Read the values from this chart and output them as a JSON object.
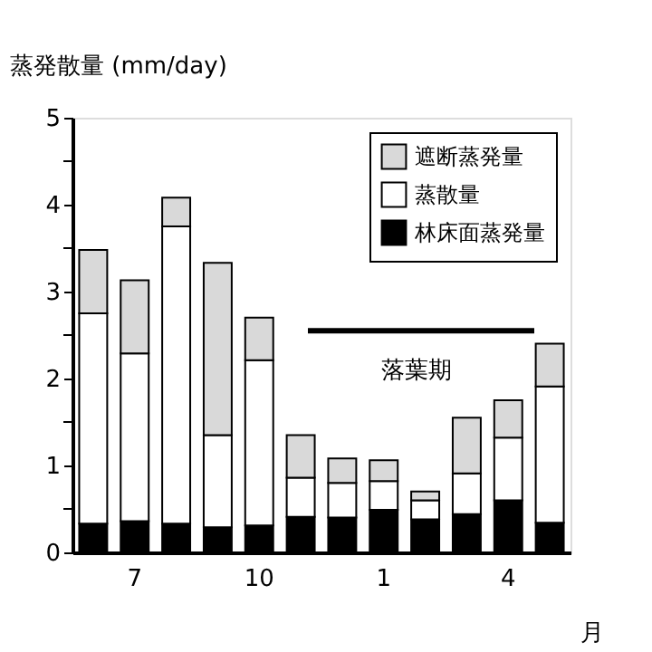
{
  "chart_data": {
    "type": "bar",
    "stacked": true,
    "ylabel": "蒸発散量 (mm/day)",
    "xlabel": "月",
    "categories": [
      null,
      "7",
      null,
      null,
      "10",
      null,
      null,
      "1",
      null,
      null,
      "4",
      null
    ],
    "series": [
      {
        "name": "林床面蒸発量",
        "color": "#000000",
        "values": [
          0.33,
          0.36,
          0.33,
          0.29,
          0.31,
          0.41,
          0.4,
          0.49,
          0.38,
          0.44,
          0.6,
          0.34
        ]
      },
      {
        "name": "蒸散量",
        "color": "#ffffff",
        "values": [
          2.42,
          1.93,
          3.42,
          1.06,
          1.9,
          0.45,
          0.4,
          0.33,
          0.22,
          0.47,
          0.72,
          1.57
        ]
      },
      {
        "name": "遮断蒸発量",
        "color": "#d9d9d9",
        "values": [
          0.73,
          0.84,
          0.33,
          1.98,
          0.49,
          0.49,
          0.28,
          0.24,
          0.1,
          0.64,
          0.43,
          0.49
        ]
      }
    ],
    "ylim": [
      0,
      5
    ],
    "yticks": [
      0,
      {
        "value": 0.5,
        "label": null
      },
      1,
      {
        "value": 1.5,
        "label": null
      },
      2,
      {
        "value": 2.5,
        "label": null
      },
      3,
      {
        "value": 3.5,
        "label": null
      },
      4,
      {
        "value": 4.5,
        "label": null
      },
      5
    ],
    "ref_lines": [
      {
        "axis": "y",
        "value": 2.55,
        "label": "落葉期"
      }
    ],
    "legend": "top right",
    "grid": false
  }
}
